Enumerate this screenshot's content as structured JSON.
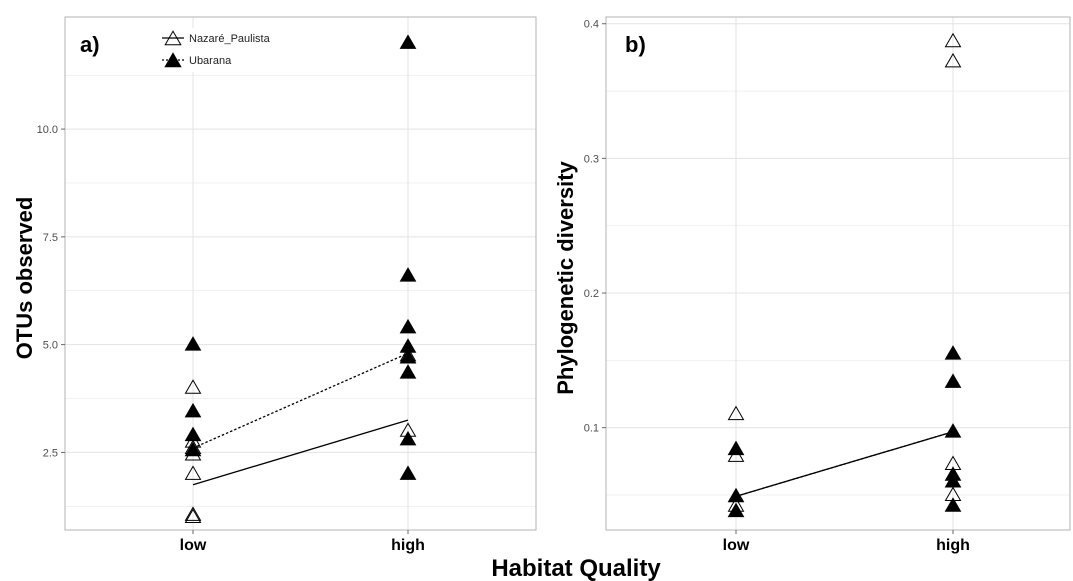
{
  "x_title": "Habitat Quality",
  "colors": {
    "grid": "#e3e3e3",
    "panel_border": "#b3b3b3",
    "marker": "#000000",
    "background": "#ffffff"
  },
  "legend": [
    {
      "label": "Nazaré_Paulista",
      "marker": "open-triangle",
      "line": "solid"
    },
    {
      "label": "Ubarana",
      "marker": "filled-triangle",
      "line": "dotted"
    }
  ],
  "chart_data": [
    {
      "type": "scatter",
      "panel_label": "a)",
      "ylabel": "OTUs observed",
      "xlabel": "",
      "categories": [
        "low",
        "high"
      ],
      "ylim": [
        0.7,
        12.6
      ],
      "yticks": [
        2.5,
        5.0,
        7.5,
        10.0
      ],
      "ytick_labels": [
        "2.5",
        "5.0",
        "7.5",
        "10.0"
      ],
      "grid": true,
      "legend_position": "top-left",
      "series": [
        {
          "name": "Nazaré_Paulista",
          "marker": "open-triangle",
          "points": [
            {
              "x": "low",
              "y": 4.0
            },
            {
              "x": "low",
              "y": 2.75
            },
            {
              "x": "low",
              "y": 2.6
            },
            {
              "x": "low",
              "y": 2.45
            },
            {
              "x": "low",
              "y": 2.0
            },
            {
              "x": "low",
              "y": 1.05
            },
            {
              "x": "low",
              "y": 1.0
            },
            {
              "x": "high",
              "y": 4.75
            },
            {
              "x": "high",
              "y": 3.0
            }
          ],
          "trend": {
            "style": "solid",
            "y": [
              1.75,
              3.25
            ]
          }
        },
        {
          "name": "Ubarana",
          "marker": "filled-triangle",
          "points": [
            {
              "x": "low",
              "y": 5.0
            },
            {
              "x": "low",
              "y": 3.45
            },
            {
              "x": "low",
              "y": 2.9
            },
            {
              "x": "low",
              "y": 2.55
            },
            {
              "x": "high",
              "y": 12.0
            },
            {
              "x": "high",
              "y": 6.6
            },
            {
              "x": "high",
              "y": 5.4
            },
            {
              "x": "high",
              "y": 4.95
            },
            {
              "x": "high",
              "y": 4.7
            },
            {
              "x": "high",
              "y": 4.35
            },
            {
              "x": "high",
              "y": 2.8
            },
            {
              "x": "high",
              "y": 2.0
            }
          ],
          "trend": {
            "style": "dotted",
            "y": [
              2.6,
              4.8
            ]
          }
        }
      ]
    },
    {
      "type": "scatter",
      "panel_label": "b)",
      "ylabel": "Phylogenetic diversity",
      "xlabel": "",
      "categories": [
        "low",
        "high"
      ],
      "ylim": [
        0.024,
        0.405
      ],
      "yticks": [
        0.1,
        0.2,
        0.3,
        0.4
      ],
      "ytick_labels": [
        "0.1",
        "0.2",
        "0.3",
        "0.4"
      ],
      "grid": true,
      "series": [
        {
          "name": "Nazaré_Paulista",
          "marker": "open-triangle",
          "points": [
            {
              "x": "low",
              "y": 0.11
            },
            {
              "x": "low",
              "y": 0.079
            },
            {
              "x": "low",
              "y": 0.042
            },
            {
              "x": "high",
              "y": 0.387
            },
            {
              "x": "high",
              "y": 0.372
            },
            {
              "x": "high",
              "y": 0.073
            },
            {
              "x": "high",
              "y": 0.05
            }
          ],
          "trend": {
            "style": "solid",
            "y": [
              0.049,
              0.097
            ]
          }
        },
        {
          "name": "Ubarana",
          "marker": "filled-triangle",
          "points": [
            {
              "x": "low",
              "y": 0.084
            },
            {
              "x": "low",
              "y": 0.049
            },
            {
              "x": "low",
              "y": 0.038
            },
            {
              "x": "high",
              "y": 0.155
            },
            {
              "x": "high",
              "y": 0.134
            },
            {
              "x": "high",
              "y": 0.097
            },
            {
              "x": "high",
              "y": 0.065
            },
            {
              "x": "high",
              "y": 0.06
            },
            {
              "x": "high",
              "y": 0.042
            }
          ],
          "trend": {
            "style": "dotted",
            "y": [
              0.049,
              0.097
            ]
          }
        }
      ]
    }
  ]
}
